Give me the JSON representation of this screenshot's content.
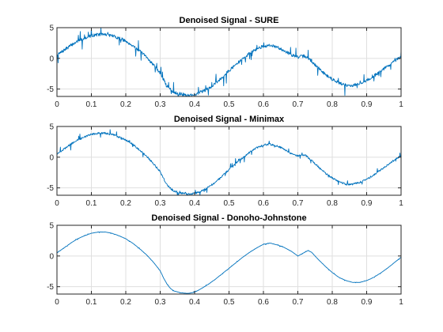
{
  "chart_data": [
    {
      "type": "line",
      "title": "Denoised Signal - SURE",
      "xlim": [
        0,
        1
      ],
      "ylim": [
        -6.2,
        5
      ],
      "xticks": [
        "0",
        "0.1",
        "0.2",
        "0.3",
        "0.4",
        "0.5",
        "0.6",
        "0.7",
        "0.8",
        "0.9",
        "1"
      ],
      "yticks": [
        "5",
        "0",
        "-5"
      ],
      "grid": true,
      "color": "#0072bd",
      "noise_amplitude": 1.0,
      "series": [
        {
          "x": [
            0,
            0.02,
            0.04,
            0.06,
            0.08,
            0.1,
            0.12,
            0.14,
            0.16,
            0.18,
            0.2,
            0.22,
            0.24,
            0.26,
            0.28,
            0.3,
            0.31,
            0.32,
            0.33,
            0.34,
            0.36,
            0.38,
            0.4,
            0.42,
            0.44,
            0.46,
            0.48,
            0.5,
            0.52,
            0.54,
            0.56,
            0.58,
            0.6,
            0.62,
            0.64,
            0.66,
            0.68,
            0.7,
            0.72,
            0.74,
            0.76,
            0.78,
            0.8,
            0.82,
            0.84,
            0.86,
            0.88,
            0.9,
            0.92,
            0.94,
            0.96,
            0.98,
            1
          ],
          "values": [
            0.5,
            1.3,
            2.1,
            2.8,
            3.3,
            3.7,
            3.9,
            3.9,
            3.7,
            3.3,
            2.8,
            2.1,
            1.2,
            0.2,
            -1.0,
            -2.4,
            -3.5,
            -4.5,
            -5.1,
            -5.5,
            -5.8,
            -6.0,
            -5.9,
            -5.5,
            -4.9,
            -4.1,
            -3.1,
            -2.0,
            -1.0,
            -0.1,
            0.8,
            1.5,
            2.0,
            2.1,
            1.8,
            1.3,
            0.6,
            0.2,
            0.4,
            -0.5,
            -1.6,
            -2.6,
            -3.4,
            -4.0,
            -4.4,
            -4.4,
            -4.1,
            -3.6,
            -2.9,
            -2.1,
            -1.3,
            -0.5,
            0.2
          ]
        }
      ]
    },
    {
      "type": "line",
      "title": "Denoised Signal - Minimax",
      "xlim": [
        0,
        1
      ],
      "ylim": [
        -6.2,
        5
      ],
      "xticks": [
        "0",
        "0.1",
        "0.2",
        "0.3",
        "0.4",
        "0.5",
        "0.6",
        "0.7",
        "0.8",
        "0.9",
        "1"
      ],
      "yticks": [
        "5",
        "0",
        "-5"
      ],
      "grid": true,
      "color": "#0072bd",
      "noise_amplitude": 0.6,
      "series": [
        {
          "x": [
            0,
            0.02,
            0.04,
            0.06,
            0.08,
            0.1,
            0.12,
            0.14,
            0.16,
            0.18,
            0.2,
            0.22,
            0.24,
            0.26,
            0.28,
            0.3,
            0.31,
            0.32,
            0.33,
            0.34,
            0.36,
            0.38,
            0.4,
            0.42,
            0.44,
            0.46,
            0.48,
            0.5,
            0.52,
            0.54,
            0.56,
            0.58,
            0.6,
            0.62,
            0.64,
            0.66,
            0.68,
            0.7,
            0.72,
            0.74,
            0.76,
            0.78,
            0.8,
            0.82,
            0.84,
            0.86,
            0.88,
            0.9,
            0.92,
            0.94,
            0.96,
            0.98,
            1
          ],
          "values": [
            0.5,
            1.3,
            2.1,
            2.8,
            3.3,
            3.7,
            3.9,
            3.9,
            3.7,
            3.3,
            2.8,
            2.1,
            1.2,
            0.2,
            -1.0,
            -2.4,
            -3.5,
            -4.5,
            -5.1,
            -5.5,
            -5.8,
            -6.0,
            -5.9,
            -5.5,
            -4.9,
            -4.1,
            -3.1,
            -2.0,
            -1.0,
            -0.1,
            0.8,
            1.5,
            2.0,
            2.1,
            1.8,
            1.3,
            0.6,
            0.2,
            0.4,
            -0.5,
            -1.6,
            -2.6,
            -3.4,
            -4.0,
            -4.4,
            -4.4,
            -4.1,
            -3.6,
            -2.9,
            -2.1,
            -1.3,
            -0.5,
            0.2
          ]
        }
      ]
    },
    {
      "type": "line",
      "title": "Denoised Signal - Donoho-Johnstone",
      "xlim": [
        0,
        1
      ],
      "ylim": [
        -6.2,
        5
      ],
      "xticks": [
        "0",
        "0.1",
        "0.2",
        "0.3",
        "0.4",
        "0.5",
        "0.6",
        "0.7",
        "0.8",
        "0.9",
        "1"
      ],
      "yticks": [
        "5",
        "0",
        "-5"
      ],
      "grid": true,
      "color": "#0072bd",
      "noise_amplitude": 0.08,
      "series": [
        {
          "x": [
            0,
            0.02,
            0.04,
            0.06,
            0.08,
            0.1,
            0.12,
            0.14,
            0.16,
            0.18,
            0.2,
            0.22,
            0.24,
            0.26,
            0.28,
            0.3,
            0.31,
            0.32,
            0.33,
            0.34,
            0.36,
            0.38,
            0.4,
            0.42,
            0.44,
            0.46,
            0.48,
            0.5,
            0.52,
            0.54,
            0.56,
            0.58,
            0.6,
            0.62,
            0.64,
            0.66,
            0.68,
            0.7,
            0.72,
            0.73,
            0.74,
            0.76,
            0.78,
            0.8,
            0.82,
            0.84,
            0.86,
            0.88,
            0.9,
            0.92,
            0.94,
            0.96,
            0.98,
            1
          ],
          "values": [
            0.5,
            1.3,
            2.1,
            2.8,
            3.3,
            3.7,
            3.9,
            3.9,
            3.7,
            3.3,
            2.8,
            2.1,
            1.2,
            0.2,
            -1.0,
            -2.4,
            -3.6,
            -4.6,
            -5.3,
            -5.7,
            -6.0,
            -6.1,
            -5.9,
            -5.3,
            -4.6,
            -3.8,
            -2.9,
            -2.0,
            -1.1,
            -0.2,
            0.6,
            1.3,
            1.9,
            2.1,
            1.8,
            1.4,
            0.8,
            0.0,
            0.6,
            0.9,
            0.6,
            -0.6,
            -1.7,
            -2.7,
            -3.5,
            -4.0,
            -4.3,
            -4.3,
            -4.0,
            -3.5,
            -2.8,
            -2.0,
            -1.1,
            -0.2
          ]
        }
      ]
    }
  ]
}
